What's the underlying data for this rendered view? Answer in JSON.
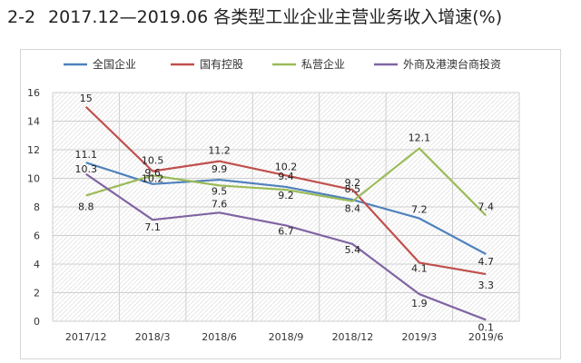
{
  "figure": {
    "number": "2-2",
    "title": "2017.12—2019.06 各类型工业企业主营业务收入增速(%)"
  },
  "chart_data": {
    "type": "line",
    "categories": [
      "2017/12",
      "2018/3",
      "2018/6",
      "2018/9",
      "2018/12",
      "2019/3",
      "2019/6"
    ],
    "ylim": [
      0,
      16
    ],
    "yticks": [
      0,
      2,
      4,
      6,
      8,
      10,
      12,
      14,
      16
    ],
    "grid": true,
    "legend": "top",
    "series": [
      {
        "name": "全国企业",
        "color": "#4f81bd",
        "values": [
          11.1,
          9.6,
          9.9,
          9.4,
          8.5,
          7.2,
          4.7
        ]
      },
      {
        "name": "国有控股",
        "color": "#c0504d",
        "values": [
          15,
          10.5,
          11.2,
          10.2,
          9.2,
          4.1,
          3.3
        ]
      },
      {
        "name": "私营企业",
        "color": "#9bbb59",
        "values": [
          8.8,
          10.2,
          9.5,
          9.2,
          8.4,
          12.1,
          7.4
        ]
      },
      {
        "name": "外商及港澳台商投资",
        "color": "#8064a2",
        "values": [
          10.3,
          7.1,
          7.6,
          6.7,
          5.4,
          1.9,
          0.1
        ]
      }
    ]
  }
}
